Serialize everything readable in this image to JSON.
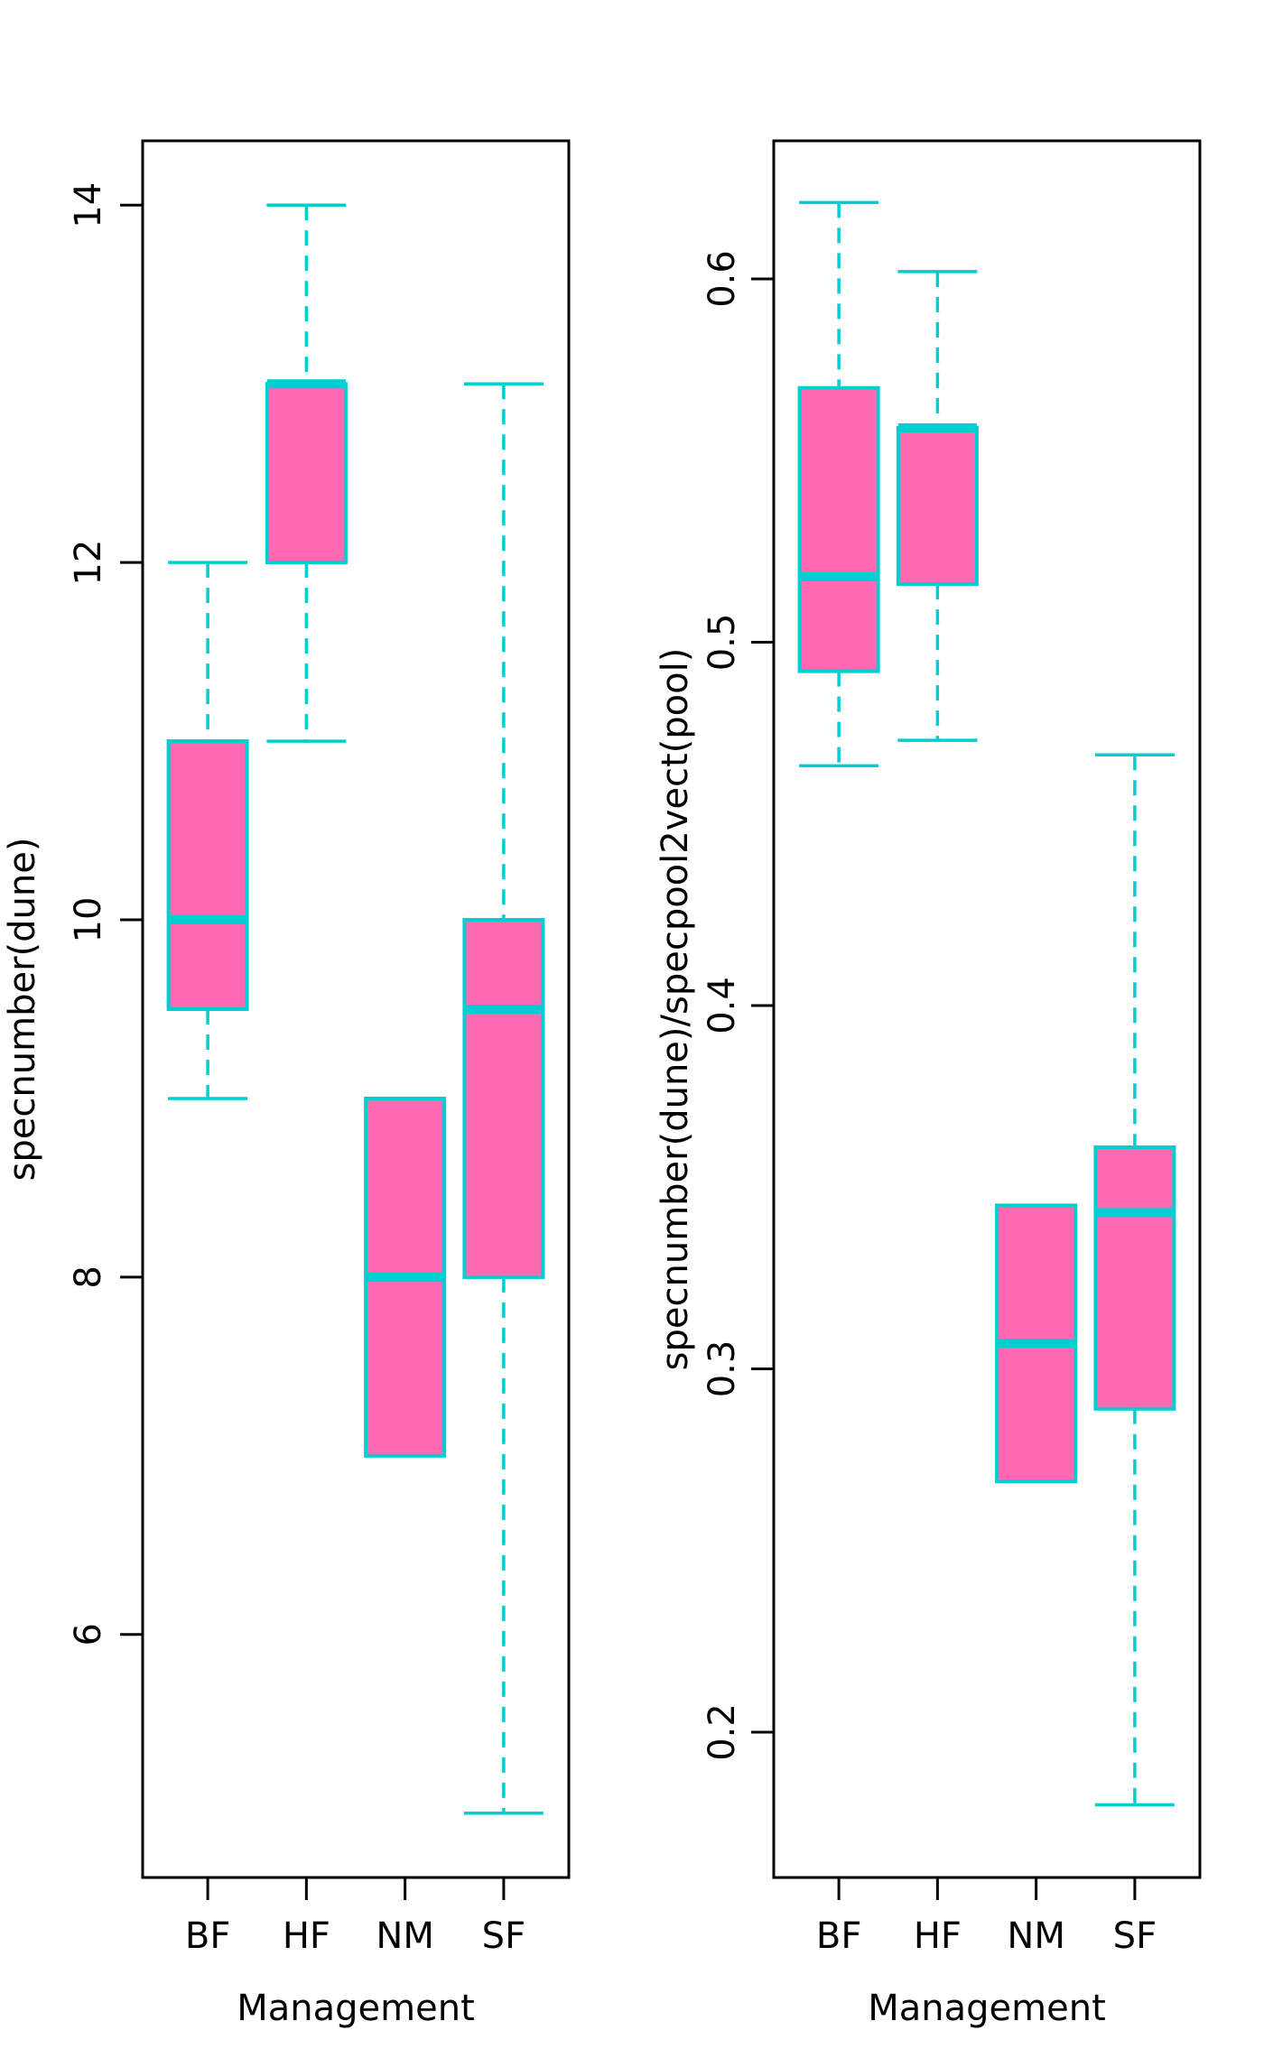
{
  "figure": {
    "description": "Two side-by-side R boxplots of dune meadow species richness by management type",
    "background_color": "#ffffff"
  },
  "colors": {
    "box_fill": "#ff69b4",
    "box_border": "#00ced1",
    "whisker": "#00ced1",
    "median": "#00ced1",
    "axis": "#000000",
    "text": "#000000"
  },
  "chart_data": [
    {
      "type": "boxplot",
      "panel": "left",
      "xlabel": "Management",
      "ylabel": "specnumber(dune)",
      "categories": [
        "BF",
        "HF",
        "NM",
        "SF"
      ],
      "ylim": [
        4.64,
        14.36
      ],
      "yticks": [
        {
          "value": 6,
          "label": "6"
        },
        {
          "value": 8,
          "label": "8"
        },
        {
          "value": 10,
          "label": "10"
        },
        {
          "value": 12,
          "label": "12"
        },
        {
          "value": 14,
          "label": "14"
        }
      ],
      "series": [
        {
          "name": "BF",
          "whisker_low": 9,
          "q1": 9.5,
          "median": 10,
          "q3": 11,
          "whisker_high": 12
        },
        {
          "name": "HF",
          "whisker_low": 11,
          "q1": 12,
          "median": 13,
          "q3": 13,
          "whisker_high": 14
        },
        {
          "name": "NM",
          "whisker_low": 7,
          "q1": 7,
          "median": 8,
          "q3": 9,
          "whisker_high": 9
        },
        {
          "name": "SF",
          "whisker_low": 5,
          "q1": 8,
          "median": 9.5,
          "q3": 10,
          "whisker_high": 13
        }
      ]
    },
    {
      "type": "boxplot",
      "panel": "right",
      "xlabel": "Management",
      "ylabel": "specnumber(dune)/specpool2vect(pool)",
      "categories": [
        "BF",
        "HF",
        "NM",
        "SF"
      ],
      "ylim": [
        0.16,
        0.638
      ],
      "yticks": [
        {
          "value": 0.2,
          "label": "0.2"
        },
        {
          "value": 0.3,
          "label": "0.3"
        },
        {
          "value": 0.4,
          "label": "0.4"
        },
        {
          "value": 0.5,
          "label": "0.5"
        },
        {
          "value": 0.6,
          "label": "0.6"
        }
      ],
      "series": [
        {
          "name": "BF",
          "whisker_low": 0.466,
          "q1": 0.492,
          "median": 0.518,
          "q3": 0.57,
          "whisker_high": 0.621
        },
        {
          "name": "HF",
          "whisker_low": 0.473,
          "q1": 0.516,
          "median": 0.559,
          "q3": 0.559,
          "whisker_high": 0.602
        },
        {
          "name": "NM",
          "whisker_low": 0.269,
          "q1": 0.269,
          "median": 0.307,
          "q3": 0.345,
          "whisker_high": 0.345
        },
        {
          "name": "SF",
          "whisker_low": 0.18,
          "q1": 0.289,
          "median": 0.343,
          "q3": 0.361,
          "whisker_high": 0.469
        }
      ]
    }
  ]
}
